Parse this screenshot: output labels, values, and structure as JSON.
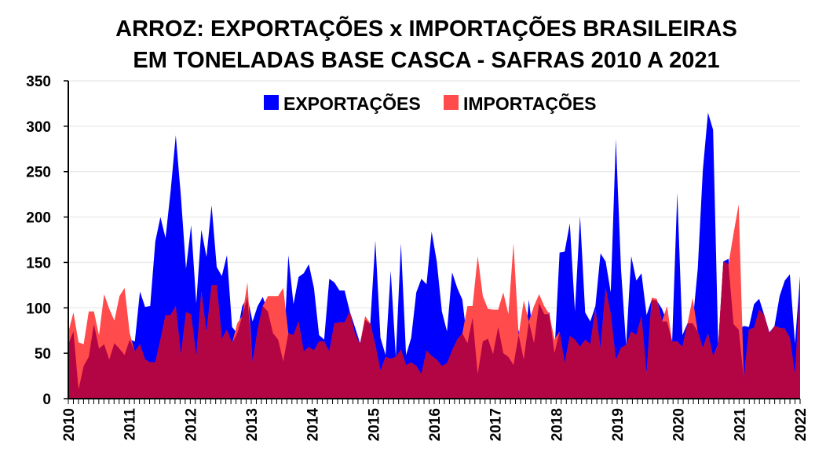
{
  "chart_data": {
    "type": "area",
    "title": [
      "ARROZ: EXPORTAÇÕES x IMPORTAÇÕES BRASILEIRAS",
      "EM TONELADAS BASE CASCA - SAFRAS 2010 A 2021"
    ],
    "xlabel": "",
    "ylabel": "",
    "ylim": [
      0,
      350
    ],
    "yticks": [
      "0",
      "50",
      "100",
      "150",
      "200",
      "250",
      "300",
      "350"
    ],
    "xticks": [
      "2010",
      "2011",
      "2012",
      "2013",
      "2014",
      "2015",
      "2016",
      "2017",
      "2018",
      "2019",
      "2020",
      "2021",
      "2022"
    ],
    "x_unit": "monthly, Jan 2010 to Dec 2021",
    "grid": true,
    "legend_placement": "top-center",
    "colors": {
      "exports": "#0000ff",
      "imports": "#ff4b4b",
      "overlap": "#b30444"
    },
    "series": [
      {
        "name": "EXPORTAÇÕES",
        "values": [
          60,
          74,
          10,
          36,
          46,
          82,
          55,
          60,
          43,
          61,
          55,
          48,
          65,
          63,
          118,
          101,
          102,
          173,
          200,
          177,
          229,
          290,
          223,
          143,
          191,
          105,
          186,
          156,
          213,
          145,
          135,
          158,
          79,
          72,
          102,
          112,
          85,
          102,
          112,
          96,
          72,
          65,
          41,
          158,
          104,
          134,
          138,
          148,
          122,
          70,
          65,
          132,
          128,
          119,
          119,
          96,
          79,
          61,
          87,
          82,
          174,
          67,
          48,
          141,
          46,
          171,
          48,
          67,
          117,
          132,
          126,
          184,
          151,
          96,
          74,
          139,
          122,
          109,
          61,
          89,
          27,
          63,
          66,
          49,
          79,
          50,
          46,
          37,
          76,
          43,
          109,
          61,
          105,
          93,
          95,
          50,
          161,
          162,
          193,
          96,
          201,
          95,
          85,
          102,
          160,
          151,
          117,
          286,
          143,
          59,
          157,
          130,
          138,
          92,
          109,
          108,
          99,
          85,
          63,
          227,
          70,
          83,
          83,
          143,
          252,
          315,
          296,
          59,
          151,
          154,
          82,
          76,
          80,
          79,
          104,
          110,
          92,
          73,
          80,
          113,
          130,
          137,
          61,
          135
        ]
      },
      {
        "name": "IMPORTAÇÕES",
        "values": [
          73,
          95,
          62,
          60,
          96,
          96,
          70,
          115,
          99,
          86,
          113,
          122,
          72,
          52,
          60,
          43,
          40,
          40,
          65,
          92,
          92,
          102,
          48,
          95,
          93,
          46,
          118,
          73,
          125,
          125,
          66,
          76,
          61,
          83,
          91,
          128,
          40,
          76,
          102,
          113,
          113,
          113,
          122,
          72,
          70,
          85,
          52,
          57,
          53,
          63,
          63,
          52,
          83,
          84,
          84,
          96,
          72,
          60,
          91,
          83,
          59,
          31,
          46,
          44,
          46,
          54,
          37,
          40,
          36,
          27,
          53,
          47,
          43,
          36,
          39,
          53,
          65,
          72,
          102,
          102,
          157,
          113,
          99,
          98,
          98,
          117,
          93,
          171,
          70,
          108,
          85,
          102,
          115,
          102,
          93,
          65,
          74,
          39,
          69,
          65,
          57,
          65,
          60,
          99,
          55,
          122,
          93,
          43,
          56,
          59,
          74,
          70,
          91,
          27,
          111,
          110,
          85,
          102,
          63,
          63,
          57,
          83,
          111,
          74,
          56,
          72,
          47,
          60,
          151,
          148,
          182,
          214,
          22,
          76,
          78,
          98,
          92,
          72,
          80,
          78,
          77,
          67,
          26,
          125
        ]
      }
    ]
  }
}
